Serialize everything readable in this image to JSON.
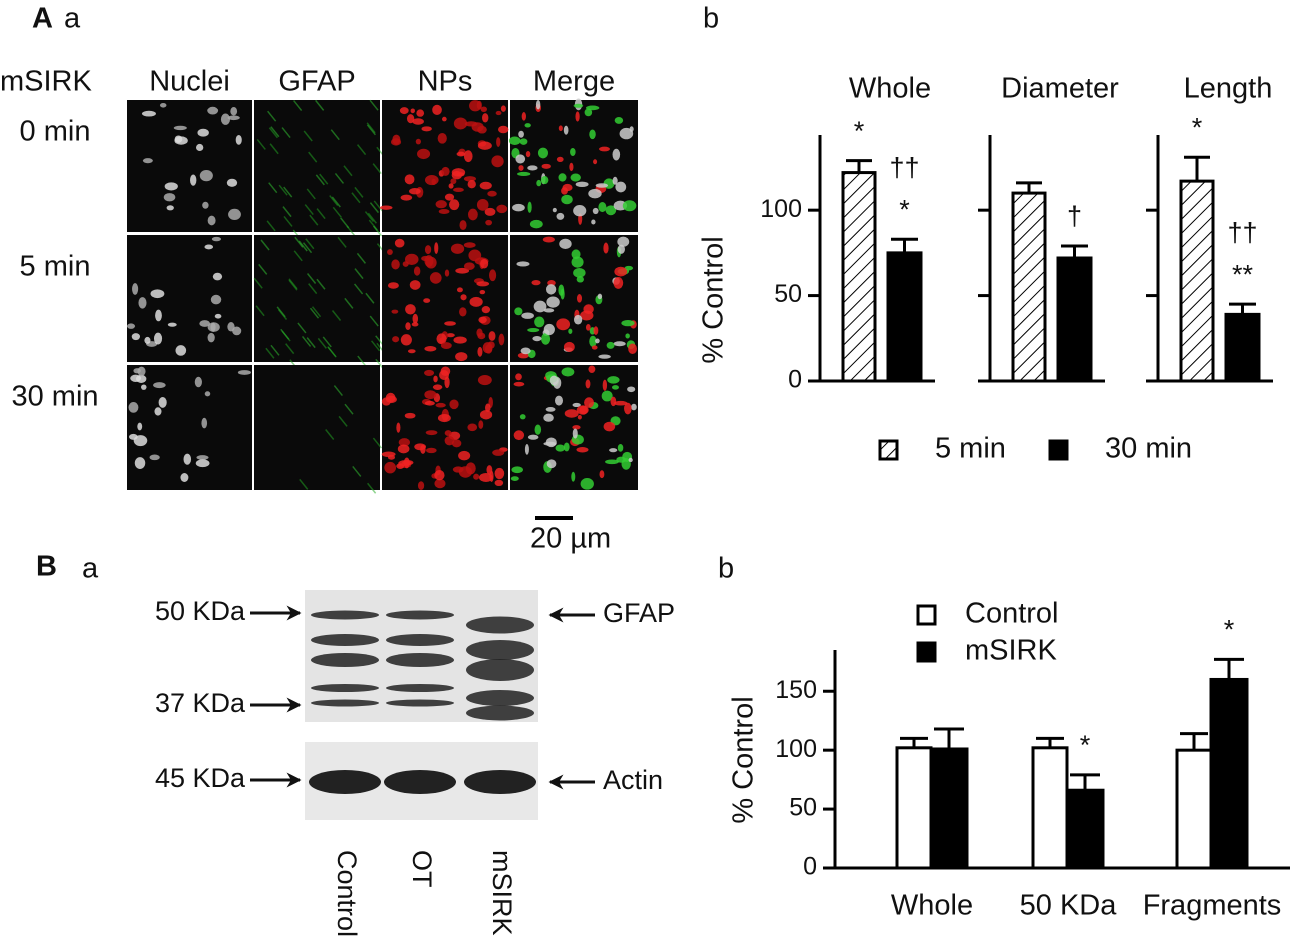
{
  "panel_labels": {
    "A": "A",
    "Aa": "a",
    "Ab": "b",
    "B": "B",
    "Ba": "a",
    "Bb": "b"
  },
  "microscopy": {
    "row_header": "mSIRK",
    "columns": [
      "Nuclei",
      "GFAP",
      "NPs",
      "Merge"
    ],
    "rows": [
      "0 min",
      "5 min",
      "30 min"
    ],
    "scale_bar": "20 µm"
  },
  "blot": {
    "markers_left": [
      "50 KDa",
      "37 KDa",
      "45 KDa"
    ],
    "markers_right": [
      "GFAP",
      "Actin"
    ],
    "lanes": [
      "Control",
      "OT",
      "mSIRK"
    ]
  },
  "chart_data": [
    {
      "type": "bar",
      "ylabel": "% Control",
      "facets": true,
      "categories": [
        "Whole",
        "Diameter",
        "Length"
      ],
      "series": [
        {
          "name": "5 min",
          "color": "#ffffff",
          "pattern": "hatch",
          "values": [
            122,
            110,
            117
          ],
          "errors": [
            7,
            6,
            14
          ],
          "annotations": [
            [
              "*"
            ],
            [],
            [
              "*"
            ]
          ]
        },
        {
          "name": "30 min",
          "color": "#000000",
          "values": [
            75,
            72,
            39
          ],
          "errors": [
            8,
            7,
            6
          ],
          "annotations": [
            [
              "††",
              "*"
            ],
            [
              "†"
            ],
            [
              "††",
              "**"
            ]
          ]
        }
      ],
      "ylim": [
        0,
        144
      ],
      "yticks": [
        0,
        50,
        100
      ]
    },
    {
      "type": "bar",
      "ylabel": "% Control",
      "categories": [
        "Whole",
        "50 KDa",
        "Fragments"
      ],
      "series": [
        {
          "name": "Control",
          "color": "#ffffff",
          "values": [
            102,
            102,
            100
          ],
          "errors": [
            8,
            8,
            14
          ],
          "annotations": [
            [],
            [],
            []
          ]
        },
        {
          "name": "mSIRK",
          "color": "#000000",
          "values": [
            101,
            66,
            160
          ],
          "errors": [
            17,
            13,
            17
          ],
          "annotations": [
            [],
            [
              "*"
            ],
            [
              "*"
            ]
          ]
        }
      ],
      "ylim": [
        0,
        185
      ],
      "yticks": [
        0,
        50,
        100,
        150
      ]
    }
  ]
}
